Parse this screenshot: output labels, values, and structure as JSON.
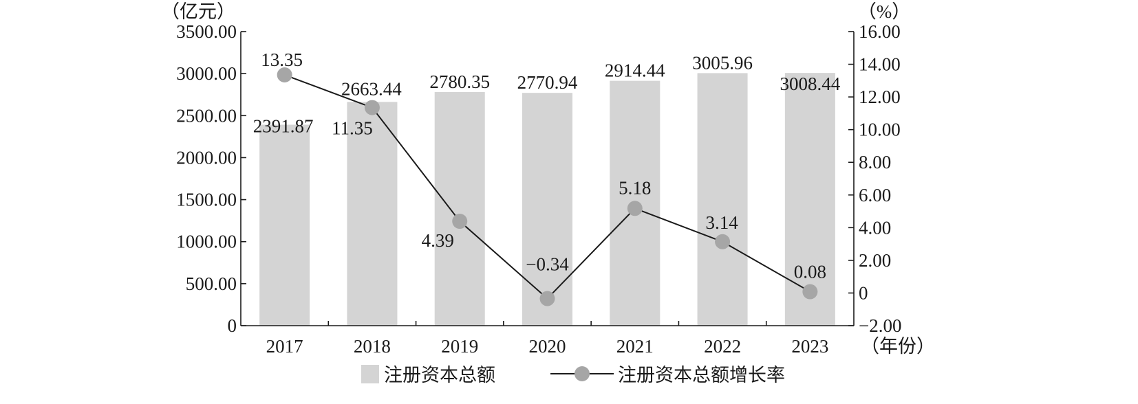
{
  "chart_data": {
    "type": "bar+line",
    "categories": [
      "2017",
      "2018",
      "2019",
      "2020",
      "2021",
      "2022",
      "2023"
    ],
    "x_unit": "（年份）",
    "y_left": {
      "unit": "（亿元）",
      "ylim": [
        0,
        3500
      ],
      "ticks": [
        "0",
        "500.00",
        "1000.00",
        "1500.00",
        "2000.00",
        "2500.00",
        "3000.00",
        "3500.00"
      ]
    },
    "y_right": {
      "unit": "（%）",
      "ylim": [
        -2,
        16
      ],
      "ticks": [
        "−2.00",
        "0",
        "2.00",
        "4.00",
        "6.00",
        "8.00",
        "10.00",
        "12.00",
        "14.00",
        "16.00"
      ]
    },
    "series": [
      {
        "name": "注册资本总额",
        "type": "bar",
        "axis": "left",
        "color": "#d4d4d4",
        "values": [
          2391.87,
          2663.44,
          2780.35,
          2770.94,
          2914.44,
          3005.96,
          3008.44
        ],
        "labels": [
          "2391.87",
          "2663.44",
          "2780.35",
          "2770.94",
          "2914.44",
          "3005.96",
          "3008.44"
        ]
      },
      {
        "name": "注册资本总额增长率",
        "type": "line",
        "axis": "right",
        "color": "#1a1a1a",
        "marker_color": "#a6a6a6",
        "values": [
          13.35,
          11.35,
          4.39,
          -0.34,
          5.18,
          3.14,
          0.08
        ],
        "labels": [
          "13.35",
          "11.35",
          "4.39",
          "−0.34",
          "5.18",
          "3.14",
          "0.08"
        ]
      }
    ],
    "grid": false,
    "legend_position": "bottom"
  }
}
